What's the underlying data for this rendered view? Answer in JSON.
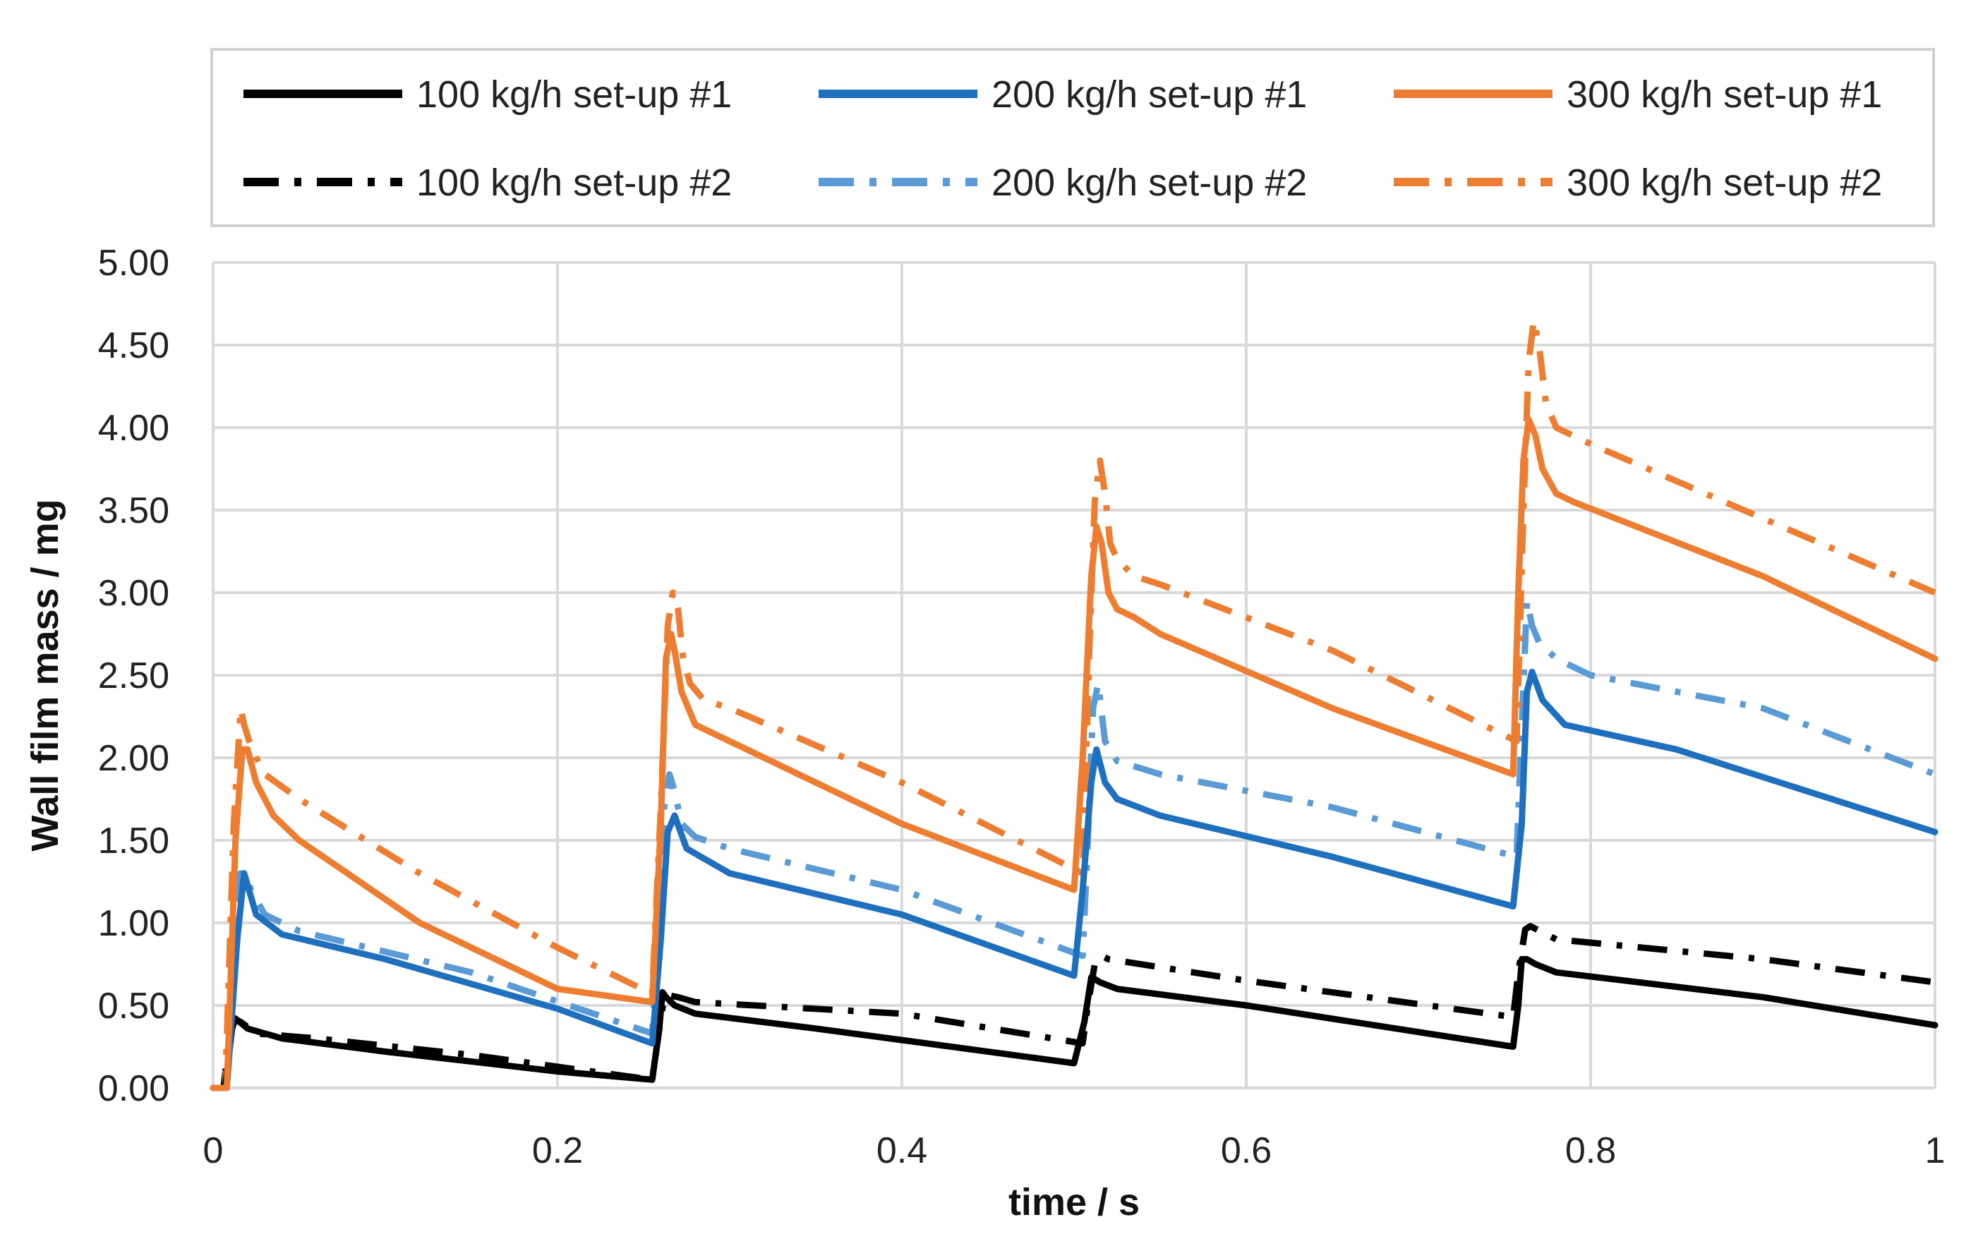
{
  "chart_data": {
    "type": "line",
    "title": "",
    "xlabel": "time / s",
    "ylabel": "Wall film mass  /  mg",
    "xlim": [
      0,
      1
    ],
    "ylim": [
      0,
      5
    ],
    "grid": true,
    "legend_position": "top",
    "x_ticks": [
      "0",
      "0.2",
      "0.4",
      "0.6",
      "0.8",
      "1"
    ],
    "y_ticks": [
      "0.00",
      "0.50",
      "1.00",
      "1.50",
      "2.00",
      "2.50",
      "3.00",
      "3.50",
      "4.00",
      "4.50",
      "5.00"
    ],
    "series": [
      {
        "name": "100 kg/h set-up #1",
        "color": "#000000",
        "style": "solid",
        "x": [
          0,
          0.007,
          0.011,
          0.013,
          0.02,
          0.04,
          0.1,
          0.2,
          0.255,
          0.259,
          0.261,
          0.263,
          0.268,
          0.28,
          0.35,
          0.5,
          0.506,
          0.51,
          0.512,
          0.515,
          0.525,
          0.6,
          0.755,
          0.758,
          0.76,
          0.763,
          0.768,
          0.78,
          0.9,
          1.0
        ],
        "y": [
          0,
          0,
          0.36,
          0.42,
          0.36,
          0.3,
          0.22,
          0.1,
          0.05,
          0.35,
          0.58,
          0.55,
          0.5,
          0.45,
          0.36,
          0.15,
          0.4,
          0.67,
          0.66,
          0.64,
          0.6,
          0.5,
          0.25,
          0.5,
          0.78,
          0.78,
          0.75,
          0.7,
          0.55,
          0.38
        ]
      },
      {
        "name": "200 kg/h set-up #1",
        "color": "#1f6fbf",
        "style": "solid",
        "x": [
          0,
          0.008,
          0.014,
          0.018,
          0.025,
          0.04,
          0.1,
          0.2,
          0.255,
          0.26,
          0.264,
          0.268,
          0.275,
          0.3,
          0.4,
          0.5,
          0.505,
          0.51,
          0.513,
          0.518,
          0.525,
          0.55,
          0.65,
          0.755,
          0.76,
          0.763,
          0.766,
          0.772,
          0.785,
          0.85,
          1.0
        ],
        "y": [
          0,
          0,
          0.9,
          1.3,
          1.05,
          0.93,
          0.78,
          0.48,
          0.27,
          0.9,
          1.55,
          1.65,
          1.45,
          1.3,
          1.05,
          0.68,
          1.2,
          1.85,
          2.05,
          1.85,
          1.75,
          1.65,
          1.4,
          1.1,
          1.6,
          2.4,
          2.52,
          2.35,
          2.2,
          2.05,
          1.55
        ]
      },
      {
        "name": "300 kg/h set-up #1",
        "color": "#ed7d31",
        "style": "solid",
        "x": [
          0,
          0.008,
          0.013,
          0.017,
          0.02,
          0.025,
          0.035,
          0.05,
          0.12,
          0.2,
          0.255,
          0.26,
          0.263,
          0.266,
          0.268,
          0.272,
          0.28,
          0.3,
          0.4,
          0.5,
          0.505,
          0.51,
          0.513,
          0.516,
          0.52,
          0.525,
          0.535,
          0.55,
          0.65,
          0.755,
          0.758,
          0.761,
          0.764,
          0.768,
          0.772,
          0.78,
          0.79,
          0.9,
          1.0
        ],
        "y": [
          0,
          0,
          1.5,
          2.05,
          2.05,
          1.85,
          1.65,
          1.5,
          1.0,
          0.6,
          0.52,
          1.6,
          2.6,
          2.75,
          2.65,
          2.4,
          2.2,
          2.1,
          1.6,
          1.2,
          2.0,
          3.1,
          3.4,
          3.3,
          3.0,
          2.9,
          2.85,
          2.75,
          2.3,
          1.9,
          3.0,
          3.8,
          4.05,
          3.95,
          3.75,
          3.6,
          3.55,
          3.1,
          2.6
        ]
      },
      {
        "name": "100 kg/h set-up #2",
        "color": "#000000",
        "style": "dashdot",
        "x": [
          0,
          0.006,
          0.01,
          0.012,
          0.016,
          0.025,
          0.06,
          0.15,
          0.255,
          0.259,
          0.262,
          0.265,
          0.27,
          0.28,
          0.4,
          0.505,
          0.508,
          0.512,
          0.516,
          0.52,
          0.6,
          0.755,
          0.758,
          0.762,
          0.765,
          0.78,
          0.9,
          1.0
        ],
        "y": [
          0,
          0,
          0.35,
          0.42,
          0.4,
          0.33,
          0.3,
          0.2,
          0.05,
          0.35,
          0.55,
          0.56,
          0.55,
          0.52,
          0.45,
          0.27,
          0.5,
          0.75,
          0.8,
          0.78,
          0.65,
          0.43,
          0.7,
          0.96,
          0.98,
          0.9,
          0.78,
          0.64
        ]
      },
      {
        "name": "200 kg/h set-up #2",
        "color": "#5b9bd5",
        "style": "dashdot",
        "x": [
          0,
          0.007,
          0.012,
          0.016,
          0.018,
          0.022,
          0.03,
          0.05,
          0.15,
          0.255,
          0.259,
          0.262,
          0.265,
          0.268,
          0.272,
          0.28,
          0.3,
          0.4,
          0.505,
          0.508,
          0.511,
          0.514,
          0.518,
          0.525,
          0.55,
          0.65,
          0.757,
          0.76,
          0.763,
          0.766,
          0.77,
          0.78,
          0.8,
          0.9,
          1.0
        ],
        "y": [
          0,
          0,
          0.9,
          1.3,
          1.3,
          1.2,
          1.05,
          0.95,
          0.7,
          0.33,
          1.0,
          1.7,
          1.9,
          1.8,
          1.6,
          1.52,
          1.45,
          1.2,
          0.8,
          1.5,
          2.3,
          2.45,
          2.1,
          1.98,
          1.9,
          1.7,
          1.4,
          2.2,
          2.95,
          2.8,
          2.7,
          2.6,
          2.5,
          2.3,
          1.9
        ]
      },
      {
        "name": "300 kg/h set-up #2",
        "color": "#ed7d31",
        "style": "dashdot",
        "x": [
          0,
          0.007,
          0.012,
          0.016,
          0.018,
          0.021,
          0.025,
          0.03,
          0.05,
          0.12,
          0.2,
          0.255,
          0.26,
          0.264,
          0.267,
          0.27,
          0.273,
          0.277,
          0.285,
          0.3,
          0.4,
          0.505,
          0.509,
          0.512,
          0.515,
          0.518,
          0.521,
          0.525,
          0.535,
          0.55,
          0.65,
          0.757,
          0.761,
          0.764,
          0.767,
          0.77,
          0.774,
          0.78,
          0.8,
          0.9,
          1.0
        ],
        "y": [
          0,
          0,
          1.6,
          2.3,
          2.2,
          2.1,
          2.0,
          1.9,
          1.75,
          1.3,
          0.85,
          0.57,
          1.7,
          2.8,
          3.0,
          2.9,
          2.6,
          2.45,
          2.35,
          2.3,
          1.85,
          1.3,
          2.7,
          3.55,
          3.8,
          3.6,
          3.3,
          3.2,
          3.1,
          3.05,
          2.65,
          2.1,
          3.5,
          4.4,
          4.65,
          4.5,
          4.15,
          4.0,
          3.9,
          3.45,
          3.0
        ]
      }
    ]
  }
}
